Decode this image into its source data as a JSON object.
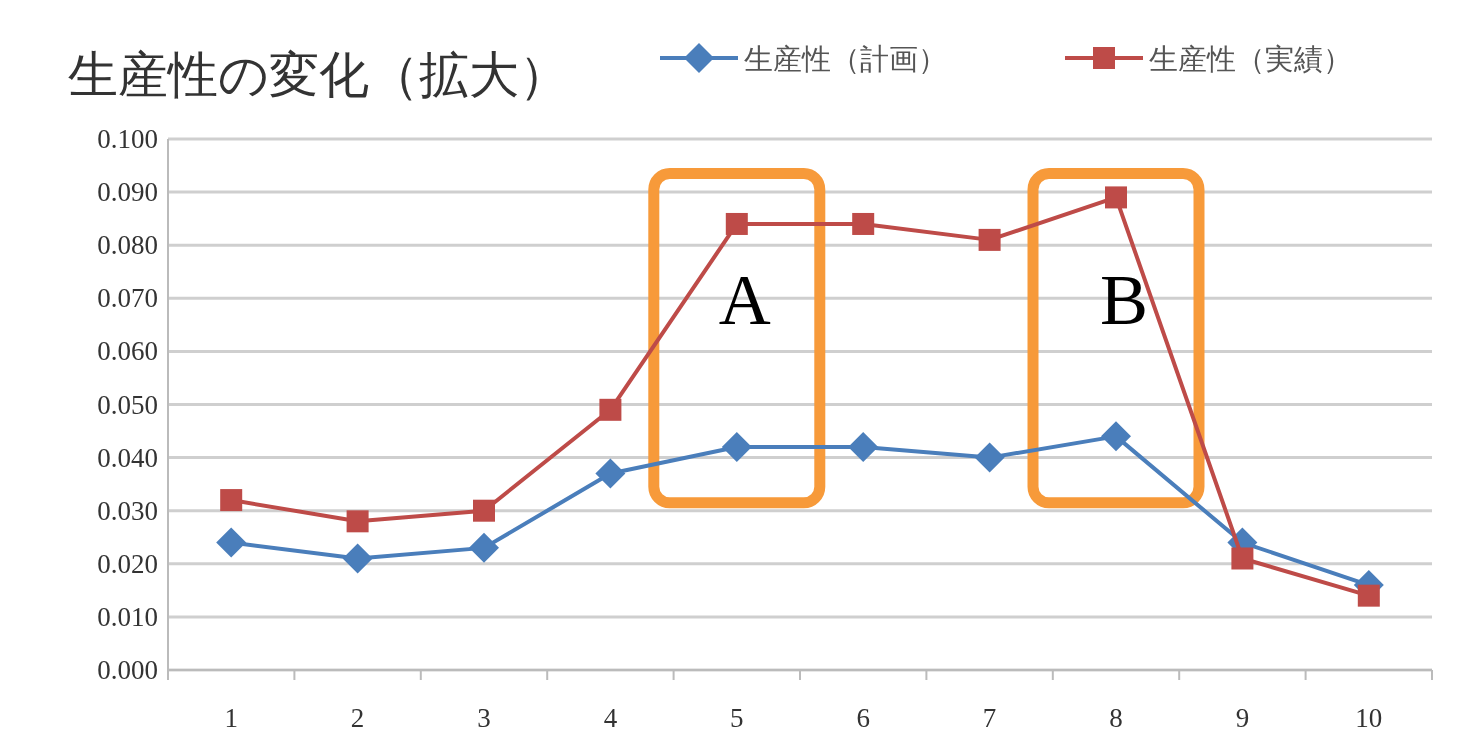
{
  "chart_data": {
    "type": "line",
    "title": "生産性の変化（拡大）",
    "categories": [
      "1",
      "2",
      "3",
      "4",
      "5",
      "6",
      "7",
      "8",
      "9",
      "10"
    ],
    "ylim": [
      0,
      0.1
    ],
    "yticks": [
      {
        "value": 0,
        "label": "0.000"
      },
      {
        "value": 0.01,
        "label": "0.010"
      },
      {
        "value": 0.02,
        "label": "0.020"
      },
      {
        "value": 0.03,
        "label": "0.030"
      },
      {
        "value": 0.04,
        "label": "0.040"
      },
      {
        "value": 0.05,
        "label": "0.050"
      },
      {
        "value": 0.06,
        "label": "0.060"
      },
      {
        "value": 0.07,
        "label": "0.070"
      },
      {
        "value": 0.08,
        "label": "0.080"
      },
      {
        "value": 0.09,
        "label": "0.090"
      },
      {
        "value": 0.1,
        "label": "0.100"
      }
    ],
    "grid": "y",
    "legend": "top right",
    "series": [
      {
        "name": "生産性（計画）",
        "color": "#4a7ebb",
        "marker": "diamond",
        "values": [
          0.024,
          0.021,
          0.023,
          0.037,
          0.042,
          0.042,
          0.04,
          0.044,
          0.024,
          0.016
        ]
      },
      {
        "name": "生産性（実績）",
        "color": "#be4b48",
        "marker": "square",
        "values": [
          0.032,
          0.028,
          0.03,
          0.049,
          0.084,
          0.084,
          0.081,
          0.089,
          0.021,
          0.014
        ]
      }
    ],
    "annotations": [
      "A",
      "B"
    ]
  }
}
